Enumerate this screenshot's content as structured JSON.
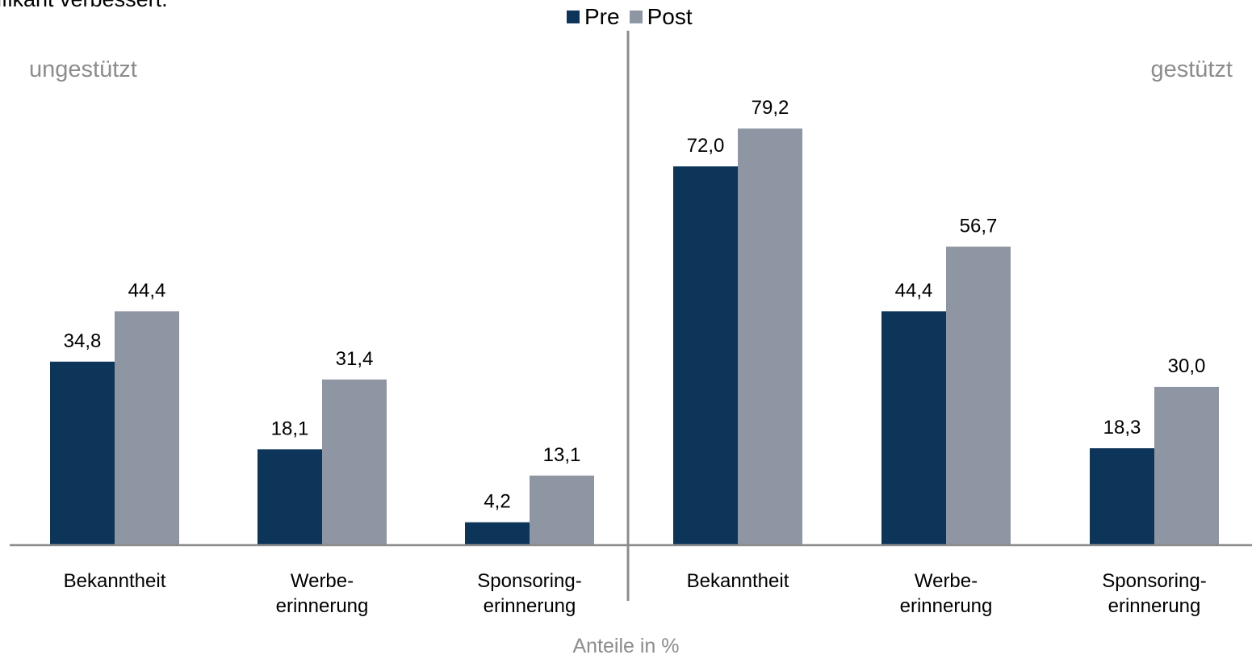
{
  "header": {
    "partial_text": "ifikant verbessert."
  },
  "legend": [
    {
      "label": "Pre",
      "color": "#0d3559"
    },
    {
      "label": "Post",
      "color": "#8f96a3"
    }
  ],
  "sections": {
    "left": "ungestützt",
    "right": "gestützt"
  },
  "footer": {
    "unit_label": "Anteile in %"
  },
  "chart_data": {
    "type": "bar",
    "groups": [
      "ungestützt",
      "gestützt"
    ],
    "categories": [
      "Bekanntheit",
      "Werbe-\nerinnerung",
      "Sponsoring-\nerinnerung",
      "Bekanntheit",
      "Werbe-\nerinnerung",
      "Sponsoring-\nerinnerung"
    ],
    "series": [
      {
        "name": "Pre",
        "values": [
          34.8,
          18.1,
          4.2,
          72.0,
          44.4,
          18.3
        ],
        "labels": [
          "34,8",
          "18,1",
          "4,2",
          "72,0",
          "44,4",
          "18,3"
        ],
        "color": "#0d3559"
      },
      {
        "name": "Post",
        "values": [
          44.4,
          31.4,
          13.1,
          79.2,
          56.7,
          30.0
        ],
        "labels": [
          "44,4",
          "31,4",
          "13,1",
          "79,2",
          "56,7",
          "30,0"
        ],
        "color": "#8f96a3"
      }
    ],
    "ylim": [
      0,
      80
    ],
    "ylabel": "Anteile in %",
    "legend_position": "top-center",
    "grid": false
  }
}
